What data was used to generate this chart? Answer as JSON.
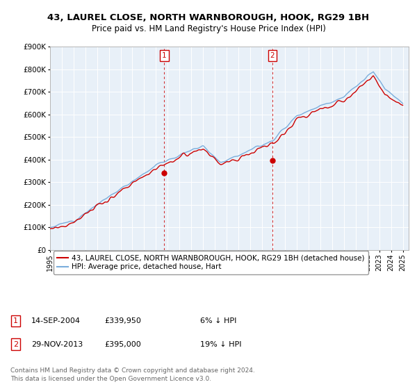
{
  "title": "43, LAUREL CLOSE, NORTH WARNBOROUGH, HOOK, RG29 1BH",
  "subtitle": "Price paid vs. HM Land Registry's House Price Index (HPI)",
  "ylim": [
    0,
    900000
  ],
  "yticks": [
    0,
    100000,
    200000,
    300000,
    400000,
    500000,
    600000,
    700000,
    800000,
    900000
  ],
  "ytick_labels": [
    "£0",
    "£100K",
    "£200K",
    "£300K",
    "£400K",
    "£500K",
    "£600K",
    "£700K",
    "£800K",
    "£900K"
  ],
  "hpi_color": "#7aaddc",
  "price_color": "#cc0000",
  "marker1_price": 339950,
  "marker1_year": 2004.71,
  "marker1_date_str": "14-SEP-2004",
  "marker1_pct": "6% ↓ HPI",
  "marker2_price": 395000,
  "marker2_year": 2013.91,
  "marker2_date_str": "29-NOV-2013",
  "marker2_pct": "19% ↓ HPI",
  "legend_line1": "43, LAUREL CLOSE, NORTH WARNBOROUGH, HOOK, RG29 1BH (detached house)",
  "legend_line2": "HPI: Average price, detached house, Hart",
  "footer": "Contains HM Land Registry data © Crown copyright and database right 2024.\nThis data is licensed under the Open Government Licence v3.0.",
  "bg_color": "#e8f0f8"
}
